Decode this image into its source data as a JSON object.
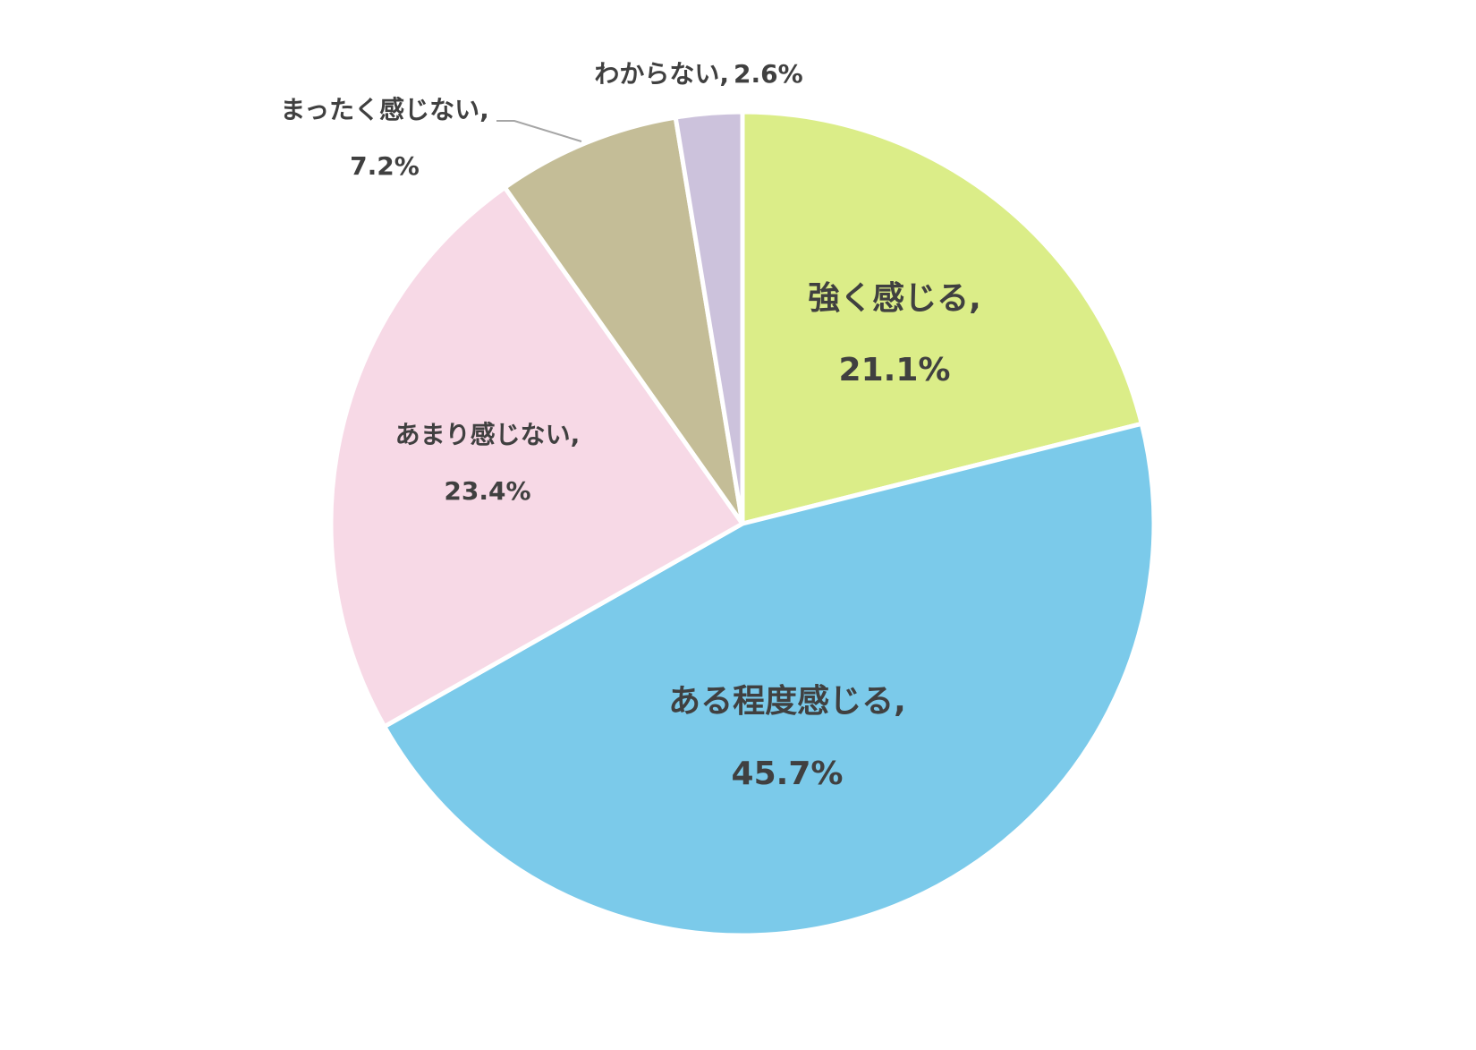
{
  "chart_data": {
    "type": "pie",
    "categories": [
      "強く感じる,",
      "ある程度感じる,",
      "あまり感じない,",
      "まったく感じない,",
      "わからない,"
    ],
    "values": [
      21.1,
      45.7,
      23.4,
      7.2,
      2.6
    ],
    "value_labels": [
      "21.1%",
      "45.7%",
      "23.4%",
      "7.2%",
      "2.6%"
    ],
    "colors": [
      "#dbed88",
      "#7bcaea",
      "#f7d9e6",
      "#c4bd97",
      "#ccc2dc"
    ]
  }
}
